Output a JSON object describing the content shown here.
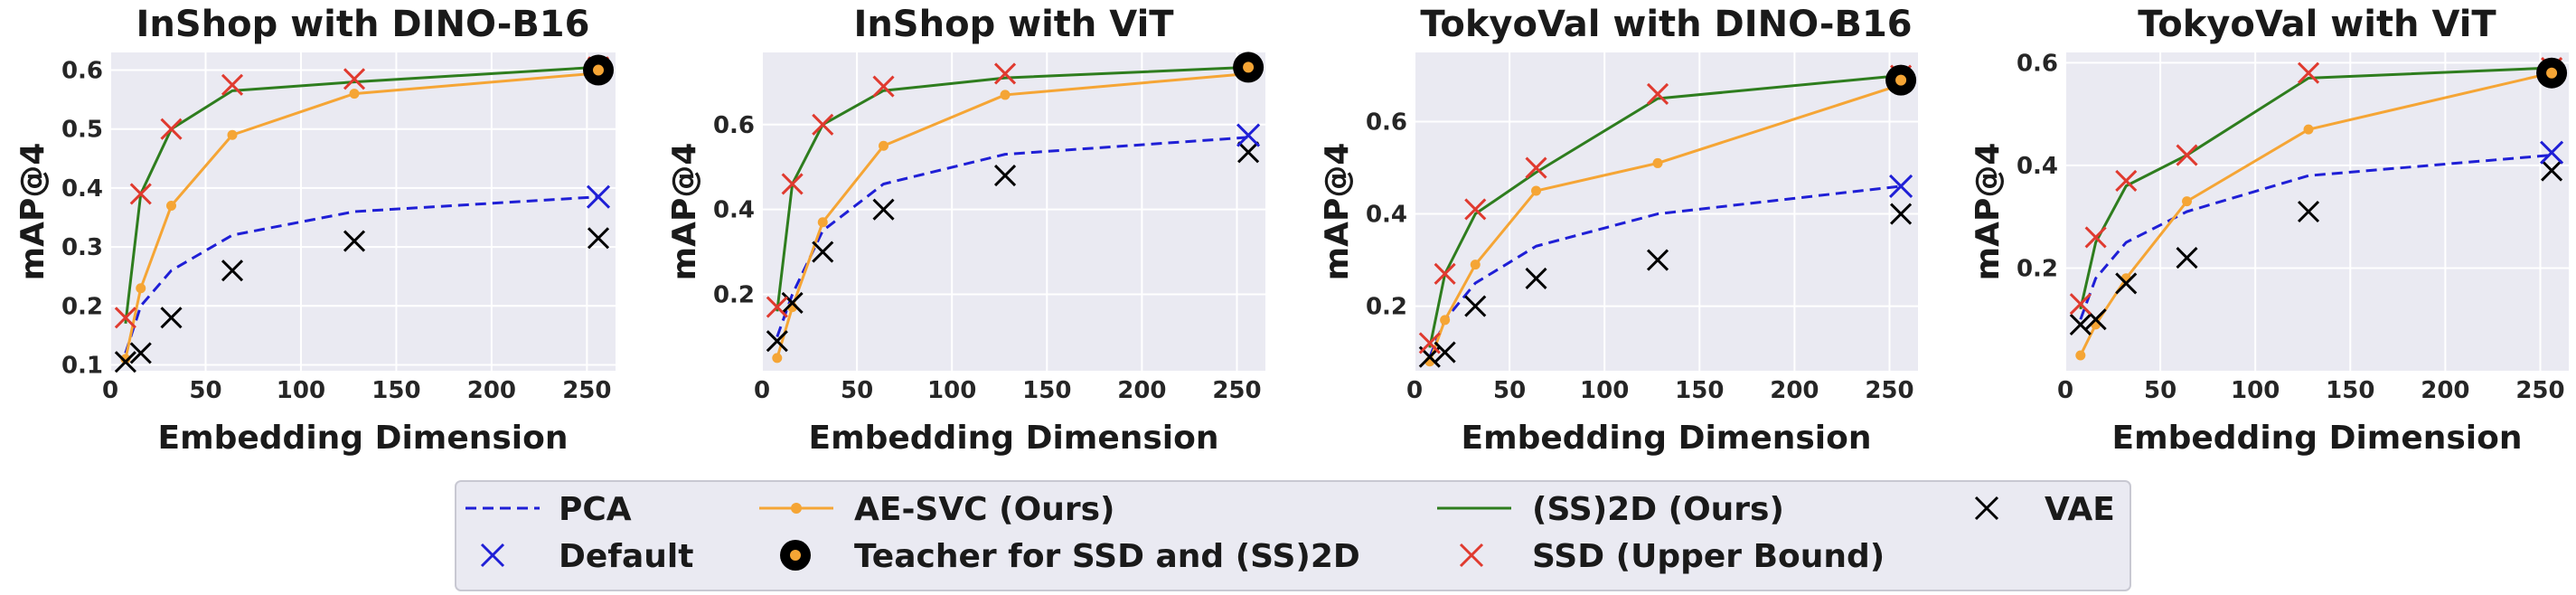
{
  "colors": {
    "background": "#eaeaf2",
    "grid": "#ffffff",
    "pca": "#1f1fd6",
    "ae_svc": "#f5a535",
    "ss2d": "#2e7d1e",
    "vae": "#000000",
    "default": "#1f1fd6",
    "teacher_outer": "#000000",
    "teacher_inner": "#f5a535",
    "ssd": "#e03a2f"
  },
  "legend": {
    "placement": "bottom-center",
    "entries": [
      {
        "key": "pca",
        "label": "PCA",
        "marker": "dashed-line"
      },
      {
        "key": "ae_svc",
        "label": "AE-SVC (Ours)",
        "marker": "line-dot"
      },
      {
        "key": "ss2d",
        "label": "(SS)2D (Ours)",
        "marker": "line"
      },
      {
        "key": "vae",
        "label": "VAE",
        "marker": "x"
      },
      {
        "key": "default",
        "label": "Default",
        "marker": "x"
      },
      {
        "key": "teacher",
        "label": "Teacher for SSD and (SS)2D",
        "marker": "big-dot"
      },
      {
        "key": "ssd",
        "label": "SSD (Upper Bound)",
        "marker": "x"
      }
    ]
  },
  "chart_data": [
    {
      "type": "line",
      "title": "InShop with DINO-B16",
      "xlabel": "Embedding Dimension",
      "ylabel": "mAP@4",
      "xlim": [
        0,
        265
      ],
      "ylim": [
        0.09,
        0.63
      ],
      "xticks": [
        0,
        50,
        100,
        150,
        200,
        250
      ],
      "yticks": [
        0.1,
        0.2,
        0.3,
        0.4,
        0.5,
        0.6
      ],
      "ytick_labels": [
        "0.1",
        "0.2",
        "0.3",
        "0.4",
        "0.5",
        "0.6"
      ],
      "grid": true,
      "series": [
        {
          "key": "pca",
          "x": [
            8,
            16,
            32,
            64,
            128,
            256
          ],
          "y": [
            0.12,
            0.2,
            0.26,
            0.32,
            0.36,
            0.385
          ]
        },
        {
          "key": "ae_svc",
          "x": [
            8,
            16,
            32,
            64,
            128,
            256
          ],
          "y": [
            0.11,
            0.23,
            0.37,
            0.49,
            0.56,
            0.595
          ]
        },
        {
          "key": "ss2d",
          "x": [
            8,
            16,
            32,
            64,
            128,
            256
          ],
          "y": [
            0.17,
            0.39,
            0.5,
            0.565,
            0.58,
            0.605
          ]
        },
        {
          "key": "vae",
          "x": [
            8,
            16,
            32,
            64,
            128,
            256
          ],
          "y": [
            0.105,
            0.12,
            0.18,
            0.26,
            0.31,
            0.315
          ]
        },
        {
          "key": "ssd",
          "x": [
            8,
            16,
            32,
            64,
            128,
            256
          ],
          "y": [
            0.18,
            0.39,
            0.5,
            0.575,
            0.585,
            0.605
          ]
        },
        {
          "key": "default",
          "x": [
            256
          ],
          "y": [
            0.385
          ]
        },
        {
          "key": "teacher",
          "x": [
            256
          ],
          "y": [
            0.6
          ]
        }
      ]
    },
    {
      "type": "line",
      "title": "InShop with ViT",
      "xlabel": "Embedding Dimension",
      "ylabel": "mAP@4",
      "xlim": [
        0,
        265
      ],
      "ylim": [
        0.02,
        0.77
      ],
      "xticks": [
        0,
        50,
        100,
        150,
        200,
        250
      ],
      "yticks": [
        0.2,
        0.4,
        0.6
      ],
      "ytick_labels": [
        "0.2",
        "0.4",
        "0.6"
      ],
      "grid": true,
      "series": [
        {
          "key": "pca",
          "x": [
            8,
            16,
            32,
            64,
            128,
            256
          ],
          "y": [
            0.1,
            0.2,
            0.35,
            0.46,
            0.53,
            0.57
          ]
        },
        {
          "key": "ae_svc",
          "x": [
            8,
            16,
            32,
            64,
            128,
            256
          ],
          "y": [
            0.05,
            0.17,
            0.37,
            0.55,
            0.67,
            0.72
          ]
        },
        {
          "key": "ss2d",
          "x": [
            8,
            16,
            32,
            64,
            128,
            256
          ],
          "y": [
            0.16,
            0.46,
            0.6,
            0.68,
            0.71,
            0.735
          ]
        },
        {
          "key": "vae",
          "x": [
            8,
            16,
            32,
            64,
            128,
            256
          ],
          "y": [
            0.09,
            0.18,
            0.3,
            0.4,
            0.48,
            0.535
          ]
        },
        {
          "key": "ssd",
          "x": [
            8,
            16,
            32,
            64,
            128,
            256
          ],
          "y": [
            0.17,
            0.46,
            0.6,
            0.69,
            0.72,
            0.735
          ]
        },
        {
          "key": "default",
          "x": [
            256
          ],
          "y": [
            0.575
          ]
        },
        {
          "key": "teacher",
          "x": [
            256
          ],
          "y": [
            0.735
          ]
        }
      ]
    },
    {
      "type": "line",
      "title": "TokyoVal with DINO-B16",
      "xlabel": "Embedding Dimension",
      "ylabel": "mAP@4",
      "xlim": [
        0,
        265
      ],
      "ylim": [
        0.06,
        0.75
      ],
      "xticks": [
        0,
        50,
        100,
        150,
        200,
        250
      ],
      "yticks": [
        0.2,
        0.4,
        0.6
      ],
      "ytick_labels": [
        "0.2",
        "0.4",
        "0.6"
      ],
      "grid": true,
      "series": [
        {
          "key": "pca",
          "x": [
            8,
            16,
            32,
            64,
            128,
            256
          ],
          "y": [
            0.09,
            0.17,
            0.25,
            0.33,
            0.4,
            0.46
          ]
        },
        {
          "key": "ae_svc",
          "x": [
            8,
            16,
            32,
            64,
            128,
            256
          ],
          "y": [
            0.08,
            0.17,
            0.29,
            0.45,
            0.51,
            0.68
          ]
        },
        {
          "key": "ss2d",
          "x": [
            8,
            16,
            32,
            64,
            128,
            256
          ],
          "y": [
            0.11,
            0.27,
            0.4,
            0.49,
            0.65,
            0.7
          ]
        },
        {
          "key": "vae",
          "x": [
            8,
            16,
            32,
            64,
            128,
            256
          ],
          "y": [
            0.09,
            0.1,
            0.2,
            0.26,
            0.3,
            0.4
          ]
        },
        {
          "key": "ssd",
          "x": [
            8,
            16,
            32,
            64,
            128,
            256
          ],
          "y": [
            0.12,
            0.27,
            0.41,
            0.5,
            0.66,
            0.7
          ]
        },
        {
          "key": "default",
          "x": [
            256
          ],
          "y": [
            0.46
          ]
        },
        {
          "key": "teacher",
          "x": [
            256
          ],
          "y": [
            0.69
          ]
        }
      ]
    },
    {
      "type": "line",
      "title": "TokyoVal with ViT",
      "xlabel": "Embedding Dimension",
      "ylabel": "mAP@4",
      "xlim": [
        0,
        265
      ],
      "ylim": [
        0.0,
        0.62
      ],
      "xticks": [
        0,
        50,
        100,
        150,
        200,
        250
      ],
      "yticks": [
        0.2,
        0.4,
        0.6
      ],
      "ytick_labels": [
        "0.2",
        "0.4",
        "0.6"
      ],
      "grid": true,
      "series": [
        {
          "key": "pca",
          "x": [
            8,
            16,
            32,
            64,
            128,
            256
          ],
          "y": [
            0.1,
            0.18,
            0.25,
            0.31,
            0.38,
            0.42
          ]
        },
        {
          "key": "ae_svc",
          "x": [
            8,
            16,
            32,
            64,
            128,
            256
          ],
          "y": [
            0.03,
            0.09,
            0.18,
            0.33,
            0.47,
            0.58
          ]
        },
        {
          "key": "ss2d",
          "x": [
            8,
            16,
            32,
            64,
            128,
            256
          ],
          "y": [
            0.12,
            0.25,
            0.36,
            0.42,
            0.57,
            0.59
          ]
        },
        {
          "key": "vae",
          "x": [
            8,
            16,
            32,
            64,
            128,
            256
          ],
          "y": [
            0.09,
            0.1,
            0.17,
            0.22,
            0.31,
            0.39
          ]
        },
        {
          "key": "ssd",
          "x": [
            8,
            16,
            32,
            64,
            128,
            256
          ],
          "y": [
            0.13,
            0.26,
            0.37,
            0.42,
            0.58,
            0.59
          ]
        },
        {
          "key": "default",
          "x": [
            256
          ],
          "y": [
            0.425
          ]
        },
        {
          "key": "teacher",
          "x": [
            256
          ],
          "y": [
            0.58
          ]
        }
      ]
    }
  ]
}
